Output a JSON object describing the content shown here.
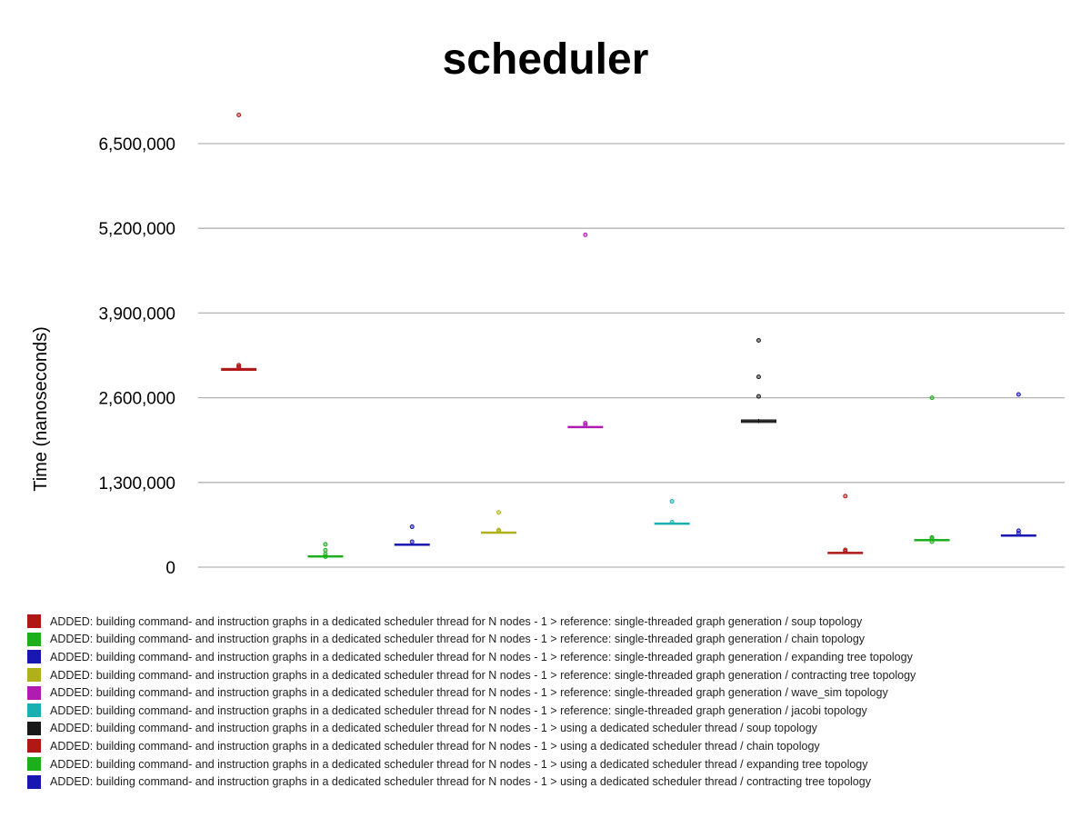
{
  "chart_data": {
    "type": "boxplot",
    "title": "scheduler",
    "ylabel": "Time (nanoseconds)",
    "xlabel": "",
    "ylim": [
      0,
      7000000
    ],
    "yticks": [
      0,
      1300000,
      2600000,
      3900000,
      5200000,
      6500000
    ],
    "ytick_labels": [
      "0",
      "1,300,000",
      "2,600,000",
      "3,900,000",
      "5,200,000",
      "6,500,000"
    ],
    "grid": true,
    "legend_position": "bottom",
    "series": [
      {
        "name": "ADDED: building command- and instruction graphs in a dedicated scheduler thread for N nodes - 1 > reference: single-threaded graph generation / soup topology",
        "color": "#b01818",
        "q1": 3020000,
        "median": 3035000,
        "q3": 3050000,
        "whisker_low": 3020000,
        "whisker_high": 3050000,
        "outliers": [
          6940000,
          3100000,
          3080000,
          3060000
        ]
      },
      {
        "name": "ADDED: building command- and instruction graphs in a dedicated scheduler thread for N nodes - 1 > reference: single-threaded graph generation / chain topology",
        "color": "#1bb01b",
        "q1": 160000,
        "median": 165000,
        "q3": 175000,
        "whisker_low": 160000,
        "whisker_high": 175000,
        "outliers": [
          350000,
          260000,
          200000,
          160000
        ]
      },
      {
        "name": "ADDED: building command- and instruction graphs in a dedicated scheduler thread for N nodes - 1 > reference: single-threaded graph generation / expanding tree topology",
        "color": "#1818b0",
        "q1": 340000,
        "median": 345000,
        "q3": 355000,
        "whisker_low": 340000,
        "whisker_high": 355000,
        "outliers": [
          620000,
          390000
        ]
      },
      {
        "name": "ADDED: building command- and instruction graphs in a dedicated scheduler thread for N nodes - 1 > reference: single-threaded graph generation / contracting tree topology",
        "color": "#b0b01b",
        "q1": 525000,
        "median": 530000,
        "q3": 540000,
        "whisker_low": 525000,
        "whisker_high": 540000,
        "outliers": [
          840000,
          570000,
          555000
        ]
      },
      {
        "name": "ADDED: building command- and instruction graphs in a dedicated scheduler thread for N nodes - 1 > reference: single-threaded graph generation / wave_sim topology",
        "color": "#b01bb0",
        "q1": 2140000,
        "median": 2150000,
        "q3": 2160000,
        "whisker_low": 2140000,
        "whisker_high": 2160000,
        "outliers": [
          5100000,
          2210000,
          2185000
        ]
      },
      {
        "name": "ADDED: building command- and instruction graphs in a dedicated scheduler thread for N nodes - 1 > reference: single-threaded graph generation / jacobi topology",
        "color": "#1bb0b0",
        "q1": 665000,
        "median": 670000,
        "q3": 678000,
        "whisker_low": 665000,
        "whisker_high": 678000,
        "outliers": [
          1010000,
          690000
        ]
      },
      {
        "name": "ADDED: building command- and instruction graphs in a dedicated scheduler thread for N nodes - 1 > using a dedicated scheduler thread / soup topology",
        "color": "#181818",
        "q1": 2220000,
        "median": 2240000,
        "q3": 2260000,
        "whisker_low": 2210000,
        "whisker_high": 2275000,
        "outliers": [
          3480000,
          2920000,
          2620000
        ]
      },
      {
        "name": "ADDED: building command- and instruction graphs in a dedicated scheduler thread for N nodes - 1 > using a dedicated scheduler thread / chain topology",
        "color": "#b01818",
        "q1": 218000,
        "median": 222000,
        "q3": 228000,
        "whisker_low": 218000,
        "whisker_high": 228000,
        "outliers": [
          1090000,
          265000,
          245000
        ]
      },
      {
        "name": "ADDED: building command- and instruction graphs in a dedicated scheduler thread for N nodes - 1 > using a dedicated scheduler thread / expanding tree topology",
        "color": "#1bb01b",
        "q1": 405000,
        "median": 415000,
        "q3": 425000,
        "whisker_low": 400000,
        "whisker_high": 430000,
        "outliers": [
          2600000,
          455000,
          440000,
          390000
        ]
      },
      {
        "name": "ADDED: building command- and instruction graphs in a dedicated scheduler thread for N nodes - 1 > using a dedicated scheduler thread / contracting tree topology",
        "color": "#1818b0",
        "q1": 475000,
        "median": 485000,
        "q3": 495000,
        "whisker_low": 470000,
        "whisker_high": 510000,
        "outliers": [
          2650000,
          560000,
          520000
        ]
      }
    ]
  }
}
